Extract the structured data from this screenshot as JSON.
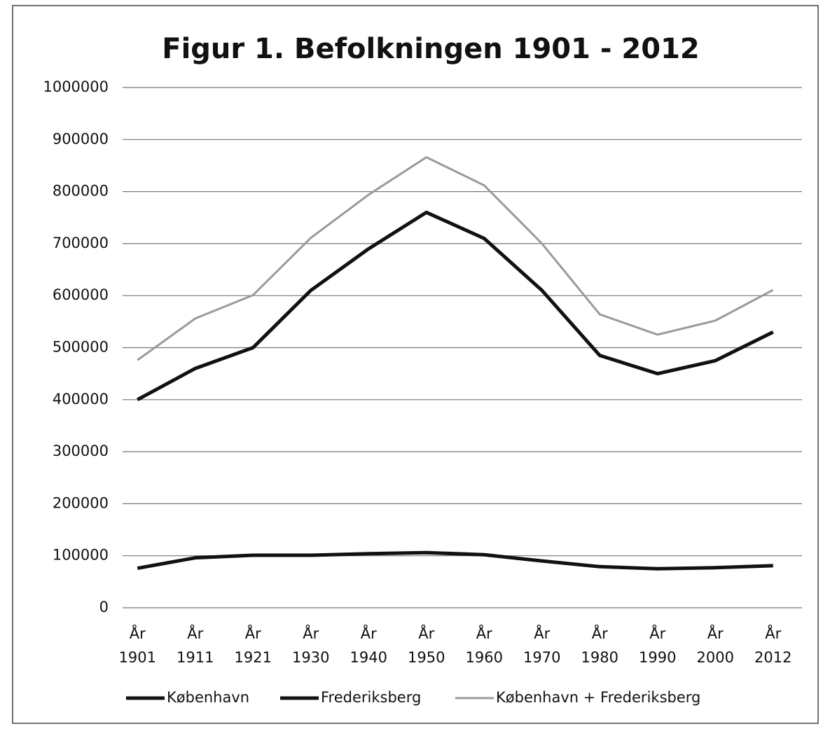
{
  "chart_data": {
    "type": "line",
    "title": "Figur 1. Befolkningen 1901 - 2012",
    "categories": [
      "År 1901",
      "År 1911",
      "År 1921",
      "År 1930",
      "År 1940",
      "År 1950",
      "År 1960",
      "År 1970",
      "År 1980",
      "År 1990",
      "År 2000",
      "År 2012"
    ],
    "series": [
      {
        "name": "København",
        "color": "#111111",
        "values": [
          400000,
          460000,
          500000,
          610000,
          690000,
          760000,
          710000,
          610000,
          485000,
          450000,
          475000,
          530000
        ]
      },
      {
        "name": "Frederiksberg",
        "color": "#111111",
        "values": [
          76000,
          96000,
          101000,
          101000,
          104000,
          106000,
          102000,
          90000,
          79000,
          75000,
          77000,
          81000
        ]
      },
      {
        "name": "København + Frederiksberg",
        "color": "#9a9a9a",
        "values": [
          476000,
          556000,
          601000,
          711000,
          794000,
          866000,
          812000,
          700000,
          564000,
          525000,
          552000,
          611000
        ]
      }
    ],
    "ylim": [
      0,
      1000000
    ],
    "yticks": [
      0,
      100000,
      200000,
      300000,
      400000,
      500000,
      600000,
      700000,
      800000,
      900000,
      1000000
    ],
    "grid": true,
    "legend": "bottom"
  }
}
